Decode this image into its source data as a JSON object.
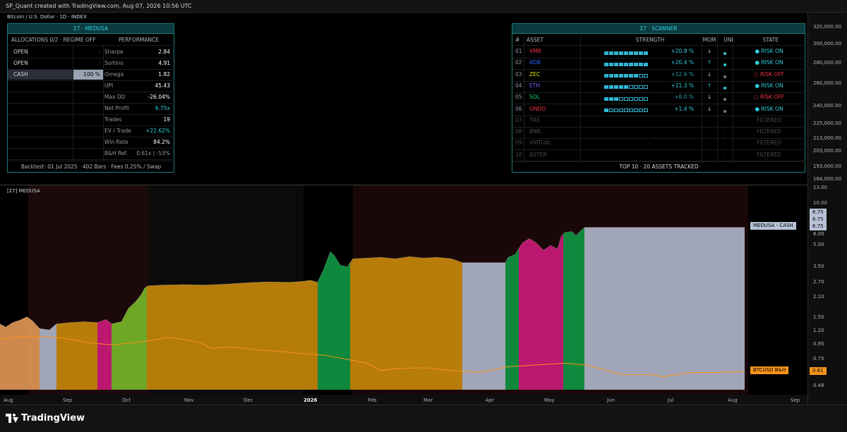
{
  "header": {
    "attribution": "SP_Quant created with TradingView.com, Aug 07, 2026 10:56 UTC"
  },
  "symbol_line": "Bitcoin / U.S. Dollar · 1D · INDEX",
  "indicator_label": "[Σ7] MEDUSA",
  "medusa_panel": {
    "title": "Σ7 · MEDUSA",
    "alloc_header": "ALLOCATIONS 0/2  ·  REGIME OFF",
    "perf_header": "PERFORMANCE",
    "allocations": [
      {
        "name": "OPEN",
        "value": "·"
      },
      {
        "name": "OPEN",
        "value": "·"
      },
      {
        "name": "CASH",
        "value": "100 %"
      }
    ],
    "metrics": [
      {
        "label": "Sharpe",
        "value": "2.84",
        "color": "#ffffff"
      },
      {
        "label": "Sortino",
        "value": "4.91",
        "color": "#ffffff"
      },
      {
        "label": "Omega",
        "value": "1.82",
        "color": "#ffffff"
      },
      {
        "label": "UPI",
        "value": "45.43",
        "color": "#ffffff"
      },
      {
        "label": "Max DD",
        "value": "-26.04%",
        "color": "#ffffff"
      },
      {
        "label": "Net Profit",
        "value": "6.75x",
        "color": "#2fd0dc"
      },
      {
        "label": "Trades",
        "value": "19",
        "color": "#ffffff"
      },
      {
        "label": "EV / Trade",
        "value": "+22.62%",
        "color": "#2fd0dc"
      },
      {
        "label": "Win Rate",
        "value": "84.2%",
        "color": "#ffffff"
      },
      {
        "label": "B&H Ref.",
        "value": "0.61x | -53%",
        "color": "#9598a1"
      }
    ],
    "footer": "Backtest: 01 Jul 2025  ·  402 Bars  ·  Fees 0.25% / Swap"
  },
  "scanner_panel": {
    "title": "Σ7 · SCANNER",
    "columns": [
      "#",
      "ASSET",
      "STRENGTH",
      "MOM",
      "UNI",
      "STATE"
    ],
    "rows": [
      {
        "rank": "01",
        "asset": "XMR",
        "asset_color": "#f23645",
        "filled": 9,
        "pct": "+20.8 %",
        "pct_color": "#2fd0dc",
        "mom": "↓",
        "uni_color": "#2fd0dc",
        "state": "● RISK ON",
        "state_color": "#2fd0dc"
      },
      {
        "rank": "02",
        "asset": "ADA",
        "asset_color": "#2962ff",
        "filled": 9,
        "pct": "+20.4 %",
        "pct_color": "#2fd0dc",
        "mom": "↑",
        "uni_color": "#2fd0dc",
        "state": "● RISK ON",
        "state_color": "#2fd0dc"
      },
      {
        "rank": "03",
        "asset": "ZEC",
        "asset_color": "#e6e600",
        "filled": 7,
        "pct": "+12.6 %",
        "pct_color": "#2a9aa8",
        "mom": "↓",
        "uni_color": "#787b86",
        "state": "○ RISK OFF",
        "state_color": "#f23645"
      },
      {
        "rank": "04",
        "asset": "ETH",
        "asset_color": "#7b61ff",
        "filled": 5,
        "pct": "+11.3 %",
        "pct_color": "#2fd0dc",
        "mom": "↑",
        "uni_color": "#2fd0dc",
        "state": "● RISK ON",
        "state_color": "#2fd0dc"
      },
      {
        "rank": "05",
        "asset": "SOL",
        "asset_color": "#22d36b",
        "filled": 3,
        "pct": "+8.0 %",
        "pct_color": "#2a9aa8",
        "mom": "↓",
        "uni_color": "#787b86",
        "state": "○ RISK OFF",
        "state_color": "#f23645"
      },
      {
        "rank": "06",
        "asset": "ONDO",
        "asset_color": "#f23645",
        "filled": 1,
        "pct": "+1.4 %",
        "pct_color": "#2fd0dc",
        "mom": "↓",
        "uni_color": "#787b86",
        "state": "● RISK ON",
        "state_color": "#2fd0dc"
      },
      {
        "rank": "07",
        "asset": "TRX",
        "asset_color": "#4a4a4a",
        "filled": 0,
        "pct": "-",
        "pct_color": "#4a4a4a",
        "mom": "-",
        "uni_color": "",
        "state": "FILTERED",
        "state_color": "#4a4a4a"
      },
      {
        "rank": "08",
        "asset": "BNB",
        "asset_color": "#4a4a4a",
        "filled": 0,
        "pct": "-",
        "pct_color": "#4a4a4a",
        "mom": "-",
        "uni_color": "",
        "state": "FILTERED",
        "state_color": "#4a4a4a"
      },
      {
        "rank": "09",
        "asset": "VIRTUAL",
        "asset_color": "#4a4a4a",
        "filled": 0,
        "pct": "-",
        "pct_color": "#4a4a4a",
        "mom": "-",
        "uni_color": "",
        "state": "FILTERED",
        "state_color": "#4a4a4a"
      },
      {
        "rank": "10",
        "asset": "ASTER",
        "asset_color": "#4a4a4a",
        "filled": 0,
        "pct": "-",
        "pct_color": "#4a4a4a",
        "mom": "-",
        "uni_color": "",
        "state": "FILTERED",
        "state_color": "#4a4a4a"
      }
    ],
    "footer": "TOP 10  ·  20 ASSETS TRACKED"
  },
  "price_axis": [
    "320,000.00",
    "300,000.00",
    "280,000.00",
    "260,000.00",
    "240,000.00",
    "225,000.00",
    "213,000.00",
    "203,000.00",
    "193,000.00",
    "184,000.00"
  ],
  "indicator_axis": [
    "13.00",
    "10.00",
    "6.00",
    "5.00",
    "3.50",
    "2.70",
    "2.10",
    "1.50",
    "1.20",
    "0.95",
    "0.75",
    "0.48"
  ],
  "x_axis": [
    "Aug",
    "Sep",
    "Oct",
    "Nov",
    "Dec",
    "2026",
    "Feb",
    "Mar",
    "Apr",
    "May",
    "Jun",
    "Jul",
    "Aug",
    "Sep"
  ],
  "price_tags": {
    "equity_values": [
      "6.75",
      "6.75",
      "6.75"
    ],
    "medusa_label": "MEDUSA - CASH",
    "bh_label": "BTCUSD B&H",
    "bh_value": "0.61"
  },
  "chart_data": {
    "type": "area",
    "title": "",
    "y_scale": "log",
    "ylim": [
      0.45,
      13
    ],
    "equity_curve": [
      [
        0,
        1.35
      ],
      [
        8,
        1.28
      ],
      [
        18,
        1.38
      ],
      [
        30,
        1.45
      ],
      [
        38,
        1.52
      ],
      [
        46,
        1.42
      ],
      [
        56,
        1.25
      ],
      [
        70,
        1.22
      ],
      [
        80,
        1.35
      ],
      [
        100,
        1.38
      ],
      [
        120,
        1.4
      ],
      [
        138,
        1.38
      ],
      [
        150,
        1.45
      ],
      [
        158,
        1.35
      ],
      [
        172,
        1.4
      ],
      [
        182,
        1.75
      ],
      [
        192,
        1.95
      ],
      [
        200,
        2.2
      ],
      [
        205,
        2.45
      ],
      [
        210,
        2.55
      ],
      [
        230,
        2.58
      ],
      [
        260,
        2.6
      ],
      [
        290,
        2.58
      ],
      [
        320,
        2.62
      ],
      [
        350,
        2.68
      ],
      [
        380,
        2.72
      ],
      [
        410,
        2.7
      ],
      [
        430,
        2.75
      ],
      [
        440,
        2.8
      ],
      [
        450,
        2.7
      ],
      [
        458,
        3.3
      ],
      [
        468,
        4.5
      ],
      [
        474,
        4.2
      ],
      [
        482,
        3.6
      ],
      [
        492,
        3.5
      ],
      [
        500,
        4.0
      ],
      [
        520,
        4.05
      ],
      [
        540,
        4.1
      ],
      [
        560,
        4.0
      ],
      [
        580,
        4.15
      ],
      [
        600,
        4.05
      ],
      [
        620,
        4.1
      ],
      [
        640,
        4.0
      ],
      [
        655,
        3.75
      ],
      [
        690,
        3.75
      ],
      [
        716,
        3.75
      ],
      [
        720,
        4.1
      ],
      [
        730,
        4.3
      ],
      [
        740,
        5.2
      ],
      [
        750,
        5.6
      ],
      [
        760,
        5.2
      ],
      [
        770,
        4.6
      ],
      [
        780,
        5.0
      ],
      [
        790,
        4.7
      ],
      [
        795,
        5.8
      ],
      [
        800,
        6.2
      ],
      [
        810,
        6.3
      ],
      [
        816,
        5.9
      ],
      [
        828,
        6.75
      ],
      [
        1055,
        6.75
      ]
    ],
    "bh_curve": [
      [
        0,
        1.05
      ],
      [
        40,
        1.1
      ],
      [
        80,
        1.08
      ],
      [
        110,
        1.02
      ],
      [
        130,
        0.98
      ],
      [
        160,
        0.95
      ],
      [
        200,
        1.0
      ],
      [
        240,
        1.08
      ],
      [
        280,
        1.0
      ],
      [
        300,
        0.9
      ],
      [
        330,
        0.92
      ],
      [
        360,
        0.88
      ],
      [
        400,
        0.85
      ],
      [
        430,
        0.82
      ],
      [
        460,
        0.8
      ],
      [
        490,
        0.75
      ],
      [
        520,
        0.7
      ],
      [
        540,
        0.62
      ],
      [
        560,
        0.64
      ],
      [
        600,
        0.65
      ],
      [
        640,
        0.62
      ],
      [
        680,
        0.6
      ],
      [
        720,
        0.66
      ],
      [
        760,
        0.68
      ],
      [
        800,
        0.7
      ],
      [
        830,
        0.68
      ],
      [
        860,
        0.62
      ],
      [
        880,
        0.58
      ],
      [
        920,
        0.58
      ],
      [
        940,
        0.56
      ],
      [
        980,
        0.6
      ],
      [
        1020,
        0.6
      ],
      [
        1055,
        0.61
      ]
    ],
    "segments": [
      {
        "from": 0,
        "to": 56,
        "color": "#f0a05a"
      },
      {
        "from": 56,
        "to": 80,
        "color": "#b8c2d6"
      },
      {
        "from": 80,
        "to": 138,
        "color": "#d4900a"
      },
      {
        "from": 138,
        "to": 158,
        "color": "#d81b83"
      },
      {
        "from": 158,
        "to": 208,
        "color": "#7cc22a"
      },
      {
        "from": 208,
        "to": 450,
        "color": "#d4900a"
      },
      {
        "from": 450,
        "to": 496,
        "color": "#0fa048"
      },
      {
        "from": 496,
        "to": 655,
        "color": "#d4900a"
      },
      {
        "from": 655,
        "to": 716,
        "color": "#b8c2d6"
      },
      {
        "from": 716,
        "to": 735,
        "color": "#0fa048"
      },
      {
        "from": 735,
        "to": 748,
        "color": "#d81b83"
      },
      {
        "from": 748,
        "to": 798,
        "color": "#d81b83"
      },
      {
        "from": 798,
        "to": 828,
        "color": "#0fa048"
      },
      {
        "from": 828,
        "to": 1055,
        "color": "#b8c2d6"
      }
    ],
    "bg_zones": [
      {
        "from": 40,
        "to": 210,
        "color": "#1c0a0a"
      },
      {
        "from": 210,
        "to": 430,
        "color": "#0b0b0b"
      },
      {
        "from": 430,
        "to": 500,
        "color": "#000000"
      },
      {
        "from": 500,
        "to": 830,
        "color": "#1a0808"
      },
      {
        "from": 830,
        "to": 1060,
        "color": "#1a0808"
      }
    ],
    "series": [
      {
        "name": "MEDUSA - CASH"
      },
      {
        "name": "BTCUSD B&H"
      }
    ]
  }
}
